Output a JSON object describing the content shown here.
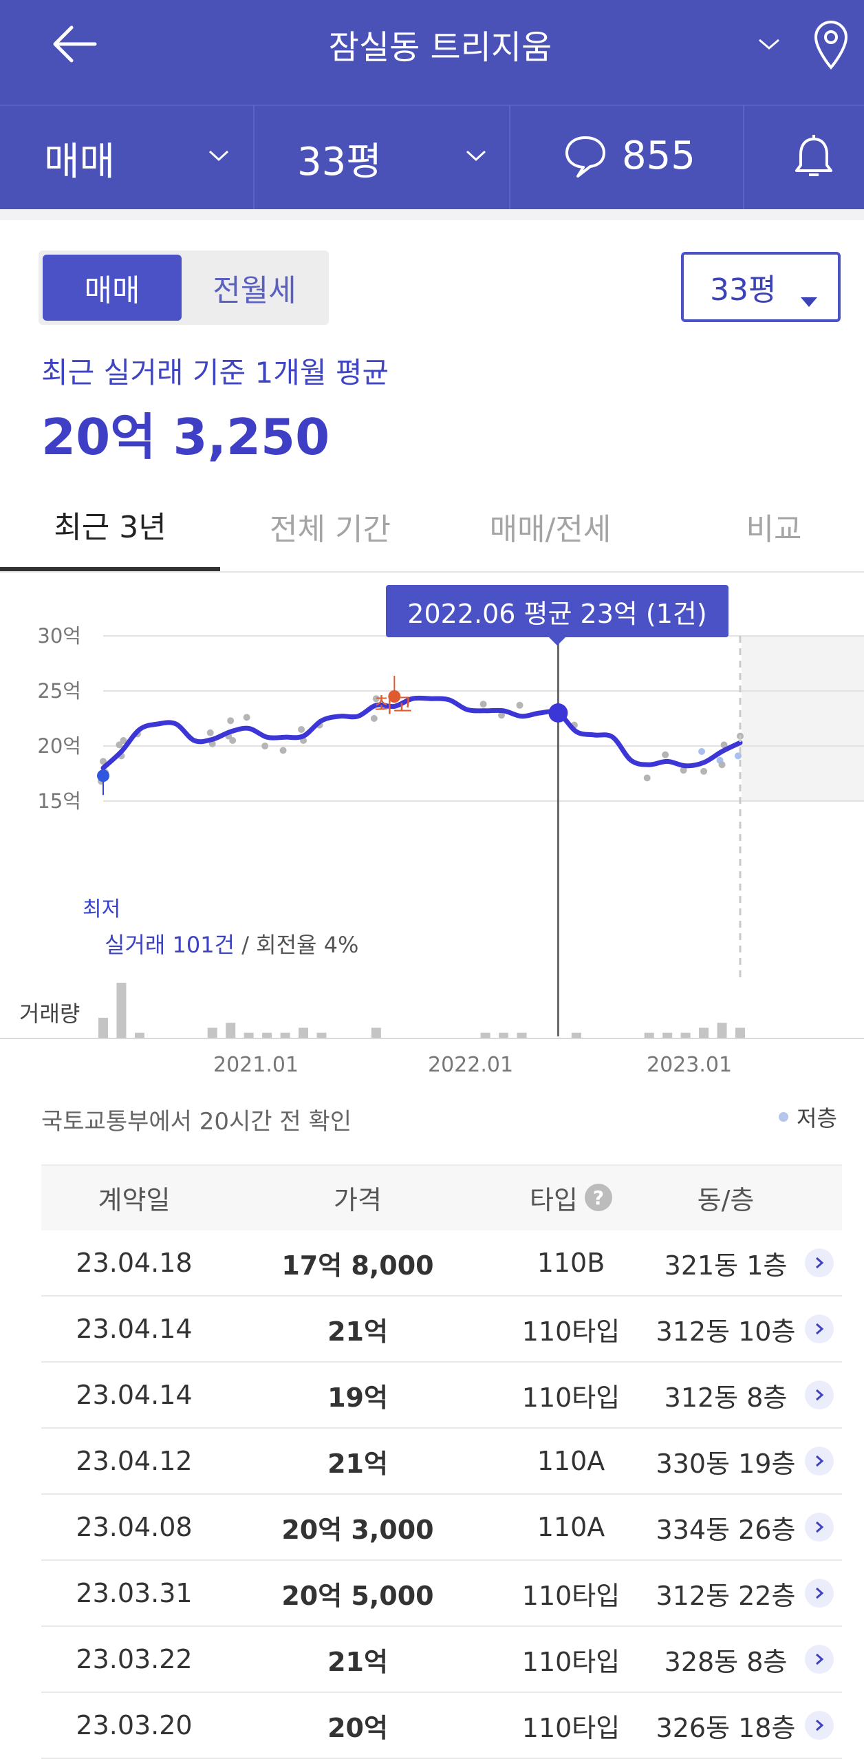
{
  "header": {
    "title": "잠실동 트리지움"
  },
  "subbar": {
    "trade_type": "매매",
    "size": "33평",
    "comments": "855"
  },
  "toggle": {
    "on": "매매",
    "off": "전월세"
  },
  "size_select": "33평",
  "summary": {
    "caption": "최근 실거래 기준 1개월 평균",
    "price": "20억 3,250"
  },
  "tabs": [
    "최근 3년",
    "전체 기간",
    "매매/전세",
    "비교"
  ],
  "tooltip": "2022.06 평균 23억 (1건)",
  "markers": {
    "high": "최고",
    "low": "최저"
  },
  "stats": {
    "count": "실거래 101건",
    "turnover": "/ 회전율 4%"
  },
  "volume_label": "거래량",
  "source_note": "국토교통부에서 20시간 전 확인",
  "legend_low": "저층",
  "chart_data": {
    "type": "line",
    "y_ticks": [
      "30억",
      "25억",
      "20억",
      "15억"
    ],
    "ylim": [
      15,
      30
    ],
    "x_ticks": [
      "2021.01",
      "2022.01",
      "2023.01"
    ],
    "series": [
      {
        "values_by_month": [
          [
            "2020.05",
            18.0
          ],
          [
            "2020.06",
            19.5
          ],
          [
            "2020.07",
            21.5
          ],
          [
            "2020.08",
            22.0
          ],
          [
            "2020.09",
            22.0
          ],
          [
            "2020.10",
            20.5
          ],
          [
            "2020.11",
            20.6
          ],
          [
            "2020.12",
            21.3
          ],
          [
            "2021.01",
            21.6
          ],
          [
            "2021.02",
            20.8
          ],
          [
            "2021.03",
            20.8
          ],
          [
            "2021.04",
            20.9
          ],
          [
            "2021.05",
            22.3
          ],
          [
            "2021.06",
            22.7
          ],
          [
            "2021.07",
            22.7
          ],
          [
            "2021.08",
            23.7
          ],
          [
            "2021.09",
            23.6
          ],
          [
            "2021.10",
            24.3
          ],
          [
            "2021.11",
            24.3
          ],
          [
            "2021.12",
            24.2
          ],
          [
            "2022.01",
            23.3
          ],
          [
            "2022.02",
            23.2
          ],
          [
            "2022.03",
            23.2
          ],
          [
            "2022.04",
            22.7
          ],
          [
            "2022.05",
            23.0
          ],
          [
            "2022.06",
            23.0
          ],
          [
            "2022.07",
            21.3
          ],
          [
            "2022.08",
            21.0
          ],
          [
            "2022.09",
            20.8
          ],
          [
            "2022.10",
            18.7
          ],
          [
            "2022.11",
            18.3
          ],
          [
            "2022.12",
            18.6
          ],
          [
            "2023.01",
            18.2
          ],
          [
            "2023.02",
            18.5
          ],
          [
            "2023.03",
            19.5
          ],
          [
            "2023.04",
            20.3
          ]
        ]
      }
    ],
    "volume": [
      4,
      11,
      1,
      0,
      0,
      0,
      2,
      3,
      1,
      1,
      1,
      2,
      1,
      0,
      0,
      2,
      0,
      0,
      0,
      0,
      0,
      1,
      1,
      1,
      0,
      0,
      1,
      0,
      0,
      0,
      1,
      1,
      1,
      2,
      3,
      2
    ],
    "highlight": {
      "x": "2022.06",
      "y": 23
    },
    "high_point": {
      "x": "2021.09",
      "y": 24.5
    },
    "low_point": {
      "x": "2020.05",
      "y": 17.3
    }
  },
  "table": {
    "headers": [
      "계약일",
      "가격",
      "타입",
      "동/층"
    ],
    "rows": [
      [
        "23.04.18",
        "17억 8,000",
        "110B",
        "321동 1층"
      ],
      [
        "23.04.14",
        "21억",
        "110타입",
        "312동 10층"
      ],
      [
        "23.04.14",
        "19억",
        "110타입",
        "312동 8층"
      ],
      [
        "23.04.12",
        "21억",
        "110A",
        "330동 19층"
      ],
      [
        "23.04.08",
        "20억 3,000",
        "110A",
        "334동 26층"
      ],
      [
        "23.03.31",
        "20억 5,000",
        "110타입",
        "312동 22층"
      ],
      [
        "23.03.22",
        "21억",
        "110타입",
        "328동 8층"
      ],
      [
        "23.03.20",
        "20억",
        "110타입",
        "326동 18층"
      ]
    ]
  }
}
